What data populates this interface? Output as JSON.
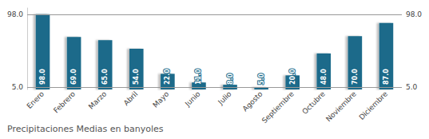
{
  "chart_data": {
    "type": "bar",
    "title": "Precipitaciones Medias en banyoles",
    "categories": [
      "Enero",
      "Febrero",
      "Marzo",
      "Abril",
      "Mayo",
      "Junio",
      "Julio",
      "Agosto",
      "Septiembre",
      "Octubre",
      "Noviembre",
      "Diciembre"
    ],
    "values": [
      98.0,
      69.0,
      65.0,
      54.0,
      22.0,
      11.0,
      8.0,
      5.0,
      20.0,
      48.0,
      70.0,
      87.0
    ],
    "value_labels": [
      "98.0",
      "69.0",
      "65.0",
      "54.0",
      "22.0",
      "11.0",
      "8.0",
      "5.0",
      "20.0",
      "48.0",
      "70.0",
      "87.0"
    ],
    "data_labels": true,
    "color": "#1b6b8a",
    "ylim": [
      2.0,
      106.0
    ],
    "tick_labels": "x",
    "grid": false,
    "annotations": [
      {
        "text": "98.0",
        "y": 98.0
      },
      {
        "text": "5.0",
        "y": 5.0
      }
    ]
  }
}
